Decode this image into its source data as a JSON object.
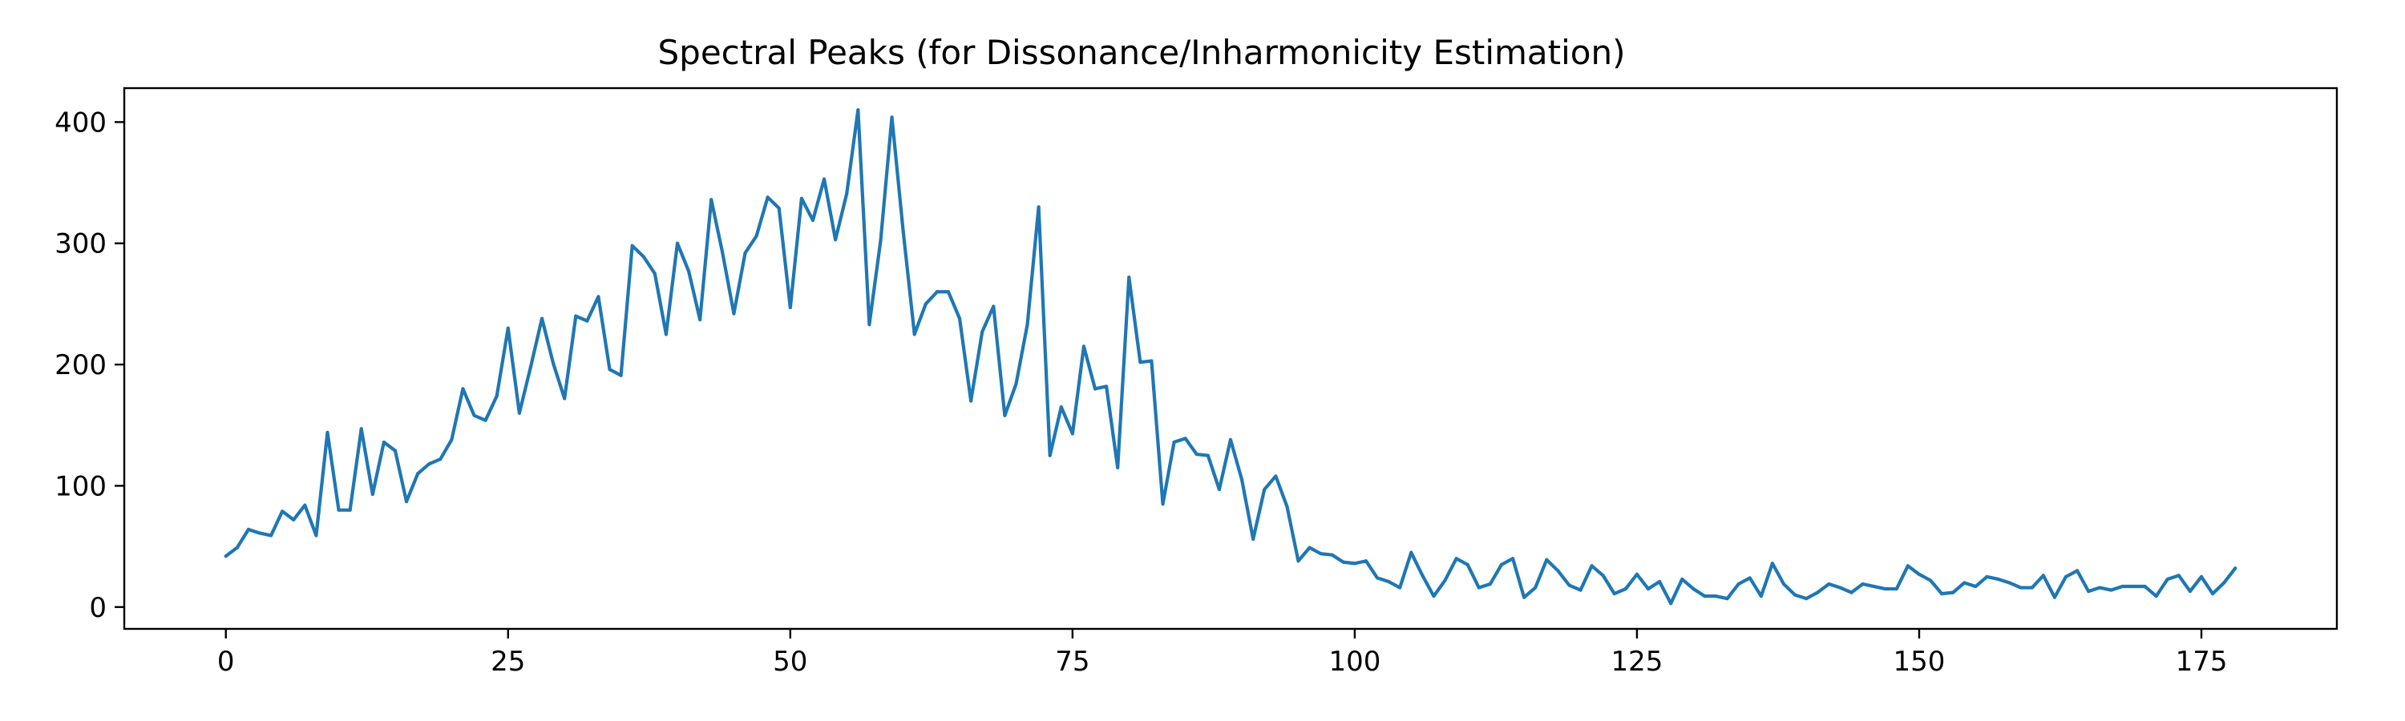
{
  "chart_data": {
    "type": "line",
    "title": "Spectral Peaks (for Dissonance/Inharmonicity Estimation)",
    "xlabel": "",
    "ylabel": "",
    "xlim": [
      -9,
      187
    ],
    "ylim": [
      -18,
      428
    ],
    "xticks": [
      0,
      25,
      50,
      75,
      100,
      125,
      150,
      175
    ],
    "yticks": [
      0,
      100,
      200,
      300,
      400
    ],
    "grid": false,
    "legend": "none",
    "color": "#1f77b4",
    "series": [
      {
        "values": [
          42,
          49,
          64,
          61,
          59,
          79,
          72,
          84,
          59,
          144,
          80,
          80,
          147,
          93,
          136,
          129,
          87,
          110,
          118,
          122,
          138,
          180,
          158,
          154,
          174,
          230,
          160,
          198,
          238,
          201,
          172,
          240,
          236,
          256,
          196,
          191,
          298,
          289,
          275,
          225,
          300,
          277,
          237,
          336,
          292,
          242,
          292,
          306,
          338,
          329,
          247,
          337,
          319,
          353,
          303,
          341,
          410,
          233,
          302,
          404,
          310,
          225,
          250,
          260,
          260,
          238,
          170,
          227,
          248,
          158,
          184,
          233,
          330,
          125,
          165,
          143,
          215,
          180,
          182,
          115,
          272,
          202,
          203,
          85,
          136,
          139,
          126,
          125,
          97,
          138,
          105,
          56,
          97,
          108,
          83,
          38,
          49,
          44,
          43,
          37,
          36,
          38,
          24,
          21,
          16,
          45,
          26,
          9,
          22,
          40,
          35,
          16,
          19,
          35,
          40,
          8,
          16,
          39,
          30,
          18,
          14,
          34,
          26,
          11,
          15,
          27,
          15,
          21,
          3,
          23,
          15,
          9,
          9,
          7,
          19,
          24,
          9,
          36,
          19,
          10,
          7,
          12,
          19,
          16,
          12,
          19,
          17,
          15,
          15,
          34,
          27,
          22,
          11,
          12,
          20,
          17,
          25,
          23,
          20,
          16,
          16,
          26,
          8,
          25,
          30,
          13,
          16,
          14,
          17,
          17,
          17,
          9,
          23,
          26,
          13,
          25,
          11,
          20,
          32
        ]
      }
    ]
  }
}
